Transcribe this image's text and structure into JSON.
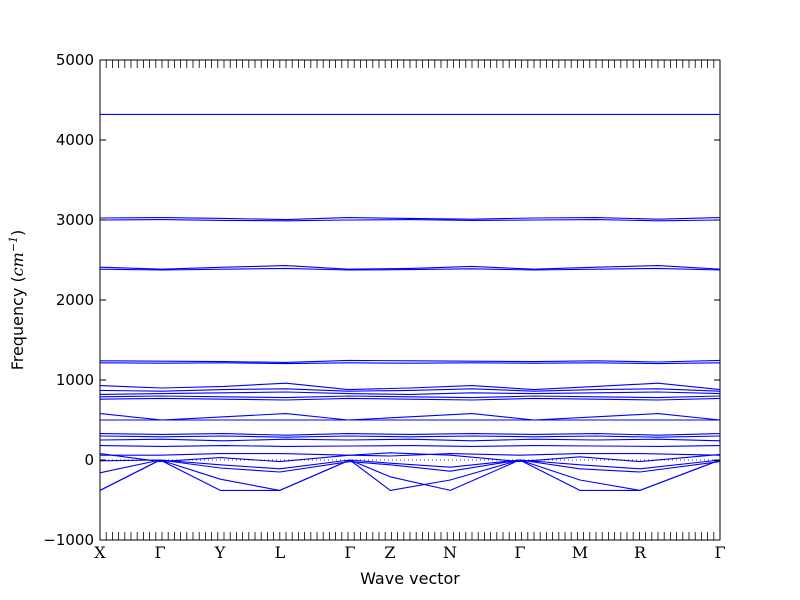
{
  "chart_data": {
    "type": "line",
    "xlabel": "Wave vector",
    "ylabel": "Frequency (cm⁻¹)",
    "ylabel_prefix": "Frequency (",
    "ylabel_unit": "cm",
    "ylabel_exp": "−1",
    "ylabel_suffix": ")",
    "ylim": [
      -1000,
      5000
    ],
    "yticks": [
      -1000,
      0,
      1000,
      2000,
      3000,
      4000,
      5000
    ],
    "ytick_labels": [
      "−1000",
      "0",
      "1000",
      "2000",
      "3000",
      "4000",
      "5000"
    ],
    "high_symmetry_points": [
      {
        "label": "X",
        "x": 0.0
      },
      {
        "label": "Γ",
        "x": 0.0968
      },
      {
        "label": "Y",
        "x": 0.1935
      },
      {
        "label": "L",
        "x": 0.2903
      },
      {
        "label": "Γ",
        "x": 0.4032
      },
      {
        "label": "Z",
        "x": 0.4677
      },
      {
        "label": "N",
        "x": 0.5645
      },
      {
        "label": "Γ",
        "x": 0.6774
      },
      {
        "label": "M",
        "x": 0.7742
      },
      {
        "label": "R",
        "x": 0.871
      },
      {
        "label": "Γ",
        "x": 1.0
      }
    ],
    "grid": false,
    "line_color": "#0000ff",
    "zero_line_style": "dotted",
    "series": [
      {
        "values": [
          [
            0,
            4320
          ],
          [
            1,
            4320
          ]
        ]
      },
      {
        "values": [
          [
            0,
            3025
          ],
          [
            0.1,
            3030
          ],
          [
            0.2,
            3020
          ],
          [
            0.3,
            3005
          ],
          [
            0.4,
            3030
          ],
          [
            0.5,
            3020
          ],
          [
            0.6,
            3010
          ],
          [
            0.7,
            3025
          ],
          [
            0.8,
            3030
          ],
          [
            0.9,
            3010
          ],
          [
            1,
            3030
          ]
        ]
      },
      {
        "values": [
          [
            0,
            3000
          ],
          [
            0.1,
            3005
          ],
          [
            0.2,
            2995
          ],
          [
            0.3,
            2990
          ],
          [
            0.4,
            3000
          ],
          [
            0.5,
            3005
          ],
          [
            0.6,
            2995
          ],
          [
            0.7,
            3000
          ],
          [
            0.8,
            3005
          ],
          [
            0.9,
            2990
          ],
          [
            1,
            3000
          ]
        ]
      },
      {
        "values": [
          [
            0,
            2410
          ],
          [
            0.1,
            2385
          ],
          [
            0.2,
            2410
          ],
          [
            0.3,
            2430
          ],
          [
            0.4,
            2385
          ],
          [
            0.5,
            2395
          ],
          [
            0.6,
            2420
          ],
          [
            0.7,
            2385
          ],
          [
            0.8,
            2410
          ],
          [
            0.9,
            2430
          ],
          [
            1,
            2385
          ]
        ]
      },
      {
        "values": [
          [
            0,
            2385
          ],
          [
            0.1,
            2375
          ],
          [
            0.2,
            2385
          ],
          [
            0.3,
            2395
          ],
          [
            0.4,
            2375
          ],
          [
            0.5,
            2380
          ],
          [
            0.6,
            2390
          ],
          [
            0.7,
            2375
          ],
          [
            0.8,
            2385
          ],
          [
            0.9,
            2395
          ],
          [
            1,
            2375
          ]
        ]
      },
      {
        "values": [
          [
            0,
            1240
          ],
          [
            0.1,
            1235
          ],
          [
            0.2,
            1230
          ],
          [
            0.3,
            1220
          ],
          [
            0.4,
            1245
          ],
          [
            0.5,
            1240
          ],
          [
            0.6,
            1235
          ],
          [
            0.7,
            1230
          ],
          [
            0.8,
            1240
          ],
          [
            0.9,
            1225
          ],
          [
            1,
            1245
          ]
        ]
      },
      {
        "values": [
          [
            0,
            1215
          ],
          [
            0.1,
            1210
          ],
          [
            0.2,
            1215
          ],
          [
            0.3,
            1205
          ],
          [
            0.4,
            1215
          ],
          [
            0.5,
            1210
          ],
          [
            0.6,
            1215
          ],
          [
            0.7,
            1210
          ],
          [
            0.8,
            1215
          ],
          [
            0.9,
            1205
          ],
          [
            1,
            1215
          ]
        ]
      },
      {
        "values": [
          [
            0,
            930
          ],
          [
            0.1,
            900
          ],
          [
            0.2,
            920
          ],
          [
            0.3,
            960
          ],
          [
            0.4,
            880
          ],
          [
            0.5,
            900
          ],
          [
            0.6,
            930
          ],
          [
            0.7,
            880
          ],
          [
            0.8,
            920
          ],
          [
            0.9,
            960
          ],
          [
            1,
            880
          ]
        ]
      },
      {
        "values": [
          [
            0,
            870
          ],
          [
            0.1,
            860
          ],
          [
            0.2,
            880
          ],
          [
            0.3,
            890
          ],
          [
            0.4,
            860
          ],
          [
            0.5,
            870
          ],
          [
            0.6,
            890
          ],
          [
            0.7,
            860
          ],
          [
            0.8,
            880
          ],
          [
            0.9,
            890
          ],
          [
            1,
            860
          ]
        ]
      },
      {
        "values": [
          [
            0,
            820
          ],
          [
            0.1,
            830
          ],
          [
            0.2,
            840
          ],
          [
            0.3,
            850
          ],
          [
            0.4,
            830
          ],
          [
            0.5,
            820
          ],
          [
            0.6,
            840
          ],
          [
            0.7,
            830
          ],
          [
            0.8,
            840
          ],
          [
            0.9,
            850
          ],
          [
            1,
            830
          ]
        ]
      },
      {
        "values": [
          [
            0,
            790
          ],
          [
            0.1,
            800
          ],
          [
            0.2,
            790
          ],
          [
            0.3,
            780
          ],
          [
            0.4,
            800
          ],
          [
            0.5,
            790
          ],
          [
            0.6,
            780
          ],
          [
            0.7,
            800
          ],
          [
            0.8,
            790
          ],
          [
            0.9,
            780
          ],
          [
            1,
            800
          ]
        ]
      },
      {
        "values": [
          [
            0,
            760
          ],
          [
            0.1,
            770
          ],
          [
            0.2,
            760
          ],
          [
            0.3,
            750
          ],
          [
            0.4,
            770
          ],
          [
            0.5,
            760
          ],
          [
            0.6,
            750
          ],
          [
            0.7,
            770
          ],
          [
            0.8,
            760
          ],
          [
            0.9,
            750
          ],
          [
            1,
            770
          ]
        ]
      },
      {
        "values": [
          [
            0,
            580
          ],
          [
            0.1,
            500
          ],
          [
            0.2,
            540
          ],
          [
            0.3,
            580
          ],
          [
            0.4,
            500
          ],
          [
            0.5,
            540
          ],
          [
            0.6,
            580
          ],
          [
            0.7,
            500
          ],
          [
            0.8,
            540
          ],
          [
            0.9,
            580
          ],
          [
            1,
            500
          ]
        ]
      },
      {
        "values": [
          [
            0,
            500
          ],
          [
            0.1,
            500
          ],
          [
            0.2,
            500
          ],
          [
            0.3,
            500
          ],
          [
            0.4,
            500
          ],
          [
            0.5,
            500
          ],
          [
            0.6,
            500
          ],
          [
            0.7,
            500
          ],
          [
            0.8,
            500
          ],
          [
            0.9,
            500
          ],
          [
            1,
            500
          ]
        ]
      },
      {
        "values": [
          [
            0,
            330
          ],
          [
            0.1,
            320
          ],
          [
            0.2,
            330
          ],
          [
            0.3,
            310
          ],
          [
            0.4,
            330
          ],
          [
            0.5,
            320
          ],
          [
            0.6,
            330
          ],
          [
            0.7,
            320
          ],
          [
            0.8,
            330
          ],
          [
            0.9,
            310
          ],
          [
            1,
            330
          ]
        ]
      },
      {
        "values": [
          [
            0,
            300
          ],
          [
            0.1,
            290
          ],
          [
            0.2,
            300
          ],
          [
            0.3,
            285
          ],
          [
            0.4,
            300
          ],
          [
            0.5,
            290
          ],
          [
            0.6,
            300
          ],
          [
            0.7,
            290
          ],
          [
            0.8,
            300
          ],
          [
            0.9,
            285
          ],
          [
            1,
            300
          ]
        ]
      },
      {
        "values": [
          [
            0,
            250
          ],
          [
            0.1,
            260
          ],
          [
            0.2,
            240
          ],
          [
            0.3,
            260
          ],
          [
            0.4,
            250
          ],
          [
            0.5,
            260
          ],
          [
            0.6,
            240
          ],
          [
            0.7,
            260
          ],
          [
            0.8,
            250
          ],
          [
            0.9,
            260
          ],
          [
            1,
            240
          ]
        ]
      },
      {
        "values": [
          [
            0,
            180
          ],
          [
            0.1,
            170
          ],
          [
            0.2,
            180
          ],
          [
            0.3,
            170
          ],
          [
            0.4,
            175
          ],
          [
            0.5,
            180
          ],
          [
            0.6,
            170
          ],
          [
            0.7,
            180
          ],
          [
            0.8,
            175
          ],
          [
            0.9,
            170
          ],
          [
            1,
            180
          ]
        ]
      },
      {
        "values": [
          [
            0,
            80
          ],
          [
            0.097,
            -20
          ],
          [
            0.194,
            30
          ],
          [
            0.29,
            -20
          ],
          [
            0.403,
            60
          ],
          [
            0.468,
            90
          ],
          [
            0.565,
            60
          ],
          [
            0.677,
            -20
          ],
          [
            0.774,
            40
          ],
          [
            0.871,
            -20
          ],
          [
            1,
            70
          ]
        ]
      },
      {
        "values": [
          [
            0,
            60
          ],
          [
            0.097,
            60
          ],
          [
            0.194,
            80
          ],
          [
            0.29,
            80
          ],
          [
            0.403,
            60
          ],
          [
            0.468,
            50
          ],
          [
            0.565,
            80
          ],
          [
            0.677,
            60
          ],
          [
            0.774,
            80
          ],
          [
            0.871,
            80
          ],
          [
            1,
            60
          ]
        ]
      },
      {
        "values": [
          [
            0,
            -10
          ],
          [
            0.097,
            0
          ],
          [
            0.194,
            -100
          ],
          [
            0.29,
            -150
          ],
          [
            0.403,
            -20
          ],
          [
            0.468,
            -60
          ],
          [
            0.565,
            -140
          ],
          [
            0.677,
            0
          ],
          [
            0.774,
            -110
          ],
          [
            0.871,
            -150
          ],
          [
            1,
            -20
          ]
        ]
      },
      {
        "values": [
          [
            0,
            -160
          ],
          [
            0.097,
            0
          ],
          [
            0.194,
            -60
          ],
          [
            0.29,
            -110
          ],
          [
            0.403,
            0
          ],
          [
            0.468,
            -40
          ],
          [
            0.565,
            -90
          ],
          [
            0.677,
            0
          ],
          [
            0.774,
            -60
          ],
          [
            0.871,
            -110
          ],
          [
            1,
            0
          ]
        ]
      },
      {
        "values": [
          [
            0,
            -380
          ],
          [
            0.097,
            0
          ],
          [
            0.194,
            -380
          ],
          [
            0.29,
            -380
          ],
          [
            0.403,
            0
          ],
          [
            0.468,
            -210
          ],
          [
            0.565,
            -380
          ],
          [
            0.677,
            0
          ],
          [
            0.774,
            -380
          ],
          [
            0.871,
            -380
          ],
          [
            1,
            0
          ]
        ]
      },
      {
        "values": [
          [
            0,
            -380
          ],
          [
            0.097,
            0
          ],
          [
            0.194,
            -240
          ],
          [
            0.29,
            -380
          ],
          [
            0.403,
            0
          ],
          [
            0.468,
            -380
          ],
          [
            0.565,
            -250
          ],
          [
            0.677,
            0
          ],
          [
            0.774,
            -250
          ],
          [
            0.871,
            -380
          ],
          [
            1,
            0
          ]
        ]
      }
    ]
  }
}
